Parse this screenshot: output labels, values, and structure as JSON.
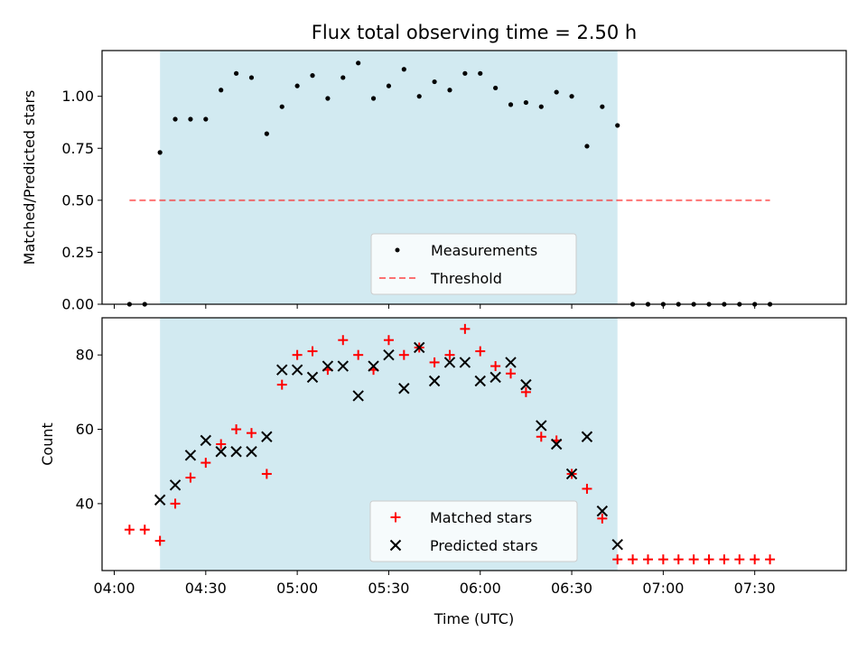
{
  "title": "Flux total observing time = 2.50 h",
  "colors": {
    "observing_band": "#add8e6",
    "measurement": "#000000",
    "threshold": "#ff0000",
    "matched": "#ff0000",
    "predicted": "#000000"
  },
  "chart_data": [
    {
      "type": "scatter",
      "title": "Flux total observing time = 2.50 h",
      "xlabel": "",
      "ylabel": "Matched/Predicted stars",
      "xlim": [
        "03:56",
        "08:00"
      ],
      "ylim": [
        0,
        1.22
      ],
      "yticks": [
        0.0,
        0.25,
        0.5,
        0.75,
        1.0
      ],
      "ytick_labels": [
        "0.00",
        "0.25",
        "0.50",
        "0.75",
        "1.00"
      ],
      "xticks": [
        "04:00",
        "04:30",
        "05:00",
        "05:30",
        "06:00",
        "06:30",
        "07:00",
        "07:30"
      ],
      "grid": false,
      "legend_position": "lower center",
      "shaded_span": [
        "04:15",
        "06:45"
      ],
      "series": [
        {
          "name": "Measurements",
          "kind": "scatter",
          "x": [
            "04:05",
            "04:10",
            "04:15",
            "04:20",
            "04:25",
            "04:30",
            "04:35",
            "04:40",
            "04:45",
            "04:50",
            "04:55",
            "05:00",
            "05:05",
            "05:10",
            "05:15",
            "05:20",
            "05:25",
            "05:30",
            "05:35",
            "05:40",
            "05:45",
            "05:50",
            "05:55",
            "06:00",
            "06:05",
            "06:10",
            "06:15",
            "06:20",
            "06:25",
            "06:30",
            "06:35",
            "06:40",
            "06:45",
            "06:50",
            "06:55",
            "07:00",
            "07:05",
            "07:10",
            "07:15",
            "07:20",
            "07:25",
            "07:30",
            "07:35"
          ],
          "y": [
            0.0,
            0.0,
            0.73,
            0.89,
            0.89,
            0.89,
            1.03,
            1.11,
            1.09,
            0.82,
            0.95,
            1.05,
            1.1,
            0.99,
            1.09,
            1.16,
            0.99,
            1.05,
            1.13,
            1.0,
            1.07,
            1.03,
            1.11,
            1.11,
            1.04,
            0.96,
            0.97,
            0.95,
            1.02,
            1.0,
            0.76,
            0.95,
            0.86,
            0.0,
            0.0,
            0.0,
            0.0,
            0.0,
            0.0,
            0.0,
            0.0,
            0.0,
            0.0
          ]
        },
        {
          "name": "Threshold",
          "kind": "line",
          "x": [
            "04:05",
            "07:35"
          ],
          "y": [
            0.5,
            0.5
          ]
        }
      ]
    },
    {
      "type": "scatter",
      "title": "",
      "xlabel": "Time (UTC)",
      "ylabel": "Count",
      "xlim": [
        "03:56",
        "08:00"
      ],
      "ylim": [
        22,
        90
      ],
      "yticks": [
        40,
        60,
        80
      ],
      "ytick_labels": [
        "40",
        "60",
        "80"
      ],
      "xticks": [
        "04:00",
        "04:30",
        "05:00",
        "05:30",
        "06:00",
        "06:30",
        "07:00",
        "07:30"
      ],
      "xtick_labels": [
        "04:00",
        "04:30",
        "05:00",
        "05:30",
        "06:00",
        "06:30",
        "07:00",
        "07:30"
      ],
      "grid": false,
      "legend_position": "lower center",
      "shaded_span": [
        "04:15",
        "06:45"
      ],
      "series": [
        {
          "name": "Matched stars",
          "kind": "plus",
          "x": [
            "04:05",
            "04:10",
            "04:15",
            "04:20",
            "04:25",
            "04:30",
            "04:35",
            "04:40",
            "04:45",
            "04:50",
            "04:55",
            "05:00",
            "05:05",
            "05:10",
            "05:15",
            "05:20",
            "05:25",
            "05:30",
            "05:35",
            "05:40",
            "05:45",
            "05:50",
            "05:55",
            "06:00",
            "06:05",
            "06:10",
            "06:15",
            "06:20",
            "06:25",
            "06:30",
            "06:35",
            "06:40",
            "06:45",
            "06:50",
            "06:55",
            "07:00",
            "07:05",
            "07:10",
            "07:15",
            "07:20",
            "07:25",
            "07:30",
            "07:35"
          ],
          "y": [
            33,
            33,
            30,
            40,
            47,
            51,
            56,
            60,
            59,
            48,
            72,
            80,
            81,
            76,
            84,
            80,
            76,
            84,
            80,
            82,
            78,
            80,
            87,
            81,
            77,
            75,
            70,
            58,
            57,
            48,
            44,
            36,
            25,
            25,
            25,
            25,
            25,
            25,
            25,
            25,
            25,
            25,
            25
          ]
        },
        {
          "name": "Predicted stars",
          "kind": "x",
          "x": [
            "04:15",
            "04:20",
            "04:25",
            "04:30",
            "04:35",
            "04:40",
            "04:45",
            "04:50",
            "04:55",
            "05:00",
            "05:05",
            "05:10",
            "05:15",
            "05:20",
            "05:25",
            "05:30",
            "05:35",
            "05:40",
            "05:45",
            "05:50",
            "05:55",
            "06:00",
            "06:05",
            "06:10",
            "06:15",
            "06:20",
            "06:25",
            "06:30",
            "06:35",
            "06:40",
            "06:45"
          ],
          "y": [
            41,
            45,
            53,
            57,
            54,
            54,
            54,
            58,
            76,
            76,
            74,
            77,
            77,
            69,
            77,
            80,
            71,
            82,
            73,
            78,
            78,
            73,
            74,
            78,
            72,
            61,
            56,
            48,
            58,
            38,
            29
          ]
        }
      ]
    }
  ]
}
